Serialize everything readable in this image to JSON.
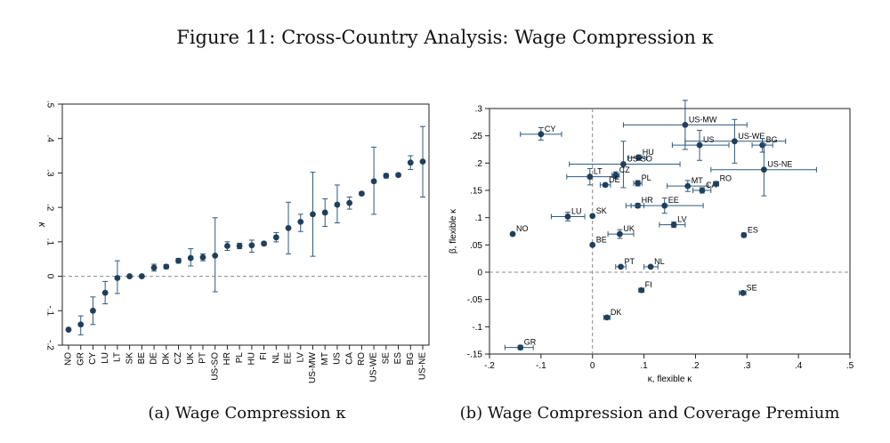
{
  "figure_title": "Figure 11: Cross-Country Analysis: Wage Compression κ",
  "captions": {
    "a": "(a) Wage Compression κ",
    "b": "(b) Wage Compression and Coverage Premium"
  },
  "colors": {
    "marker": "#1f3f5b",
    "ci": "#2e5a7e",
    "zero_line": "#888888",
    "frame": "#222222"
  },
  "chart_data": [
    {
      "type": "scatter",
      "subtype": "errorbar",
      "title": "",
      "ylabel": "κ",
      "xlabel": "",
      "ylim": [
        -0.2,
        0.5
      ],
      "yticks": [
        -0.2,
        -0.1,
        0,
        0.1,
        0.2,
        0.3,
        0.4,
        0.5
      ],
      "ytick_labels": [
        "-.2",
        "-.1",
        "0",
        ".1",
        ".2",
        ".3",
        ".4",
        ".5"
      ],
      "reference_line_y": 0,
      "categories": [
        "NO",
        "GR",
        "CY",
        "LU",
        "LT",
        "SK",
        "BE",
        "DE",
        "DK",
        "CZ",
        "UK",
        "PT",
        "US-SO",
        "HR",
        "PL",
        "HU",
        "FI",
        "NL",
        "EE",
        "LV",
        "US-MW",
        "MT",
        "US",
        "CA",
        "RO",
        "US-WE",
        "SE",
        "ES",
        "BG",
        "US-NE"
      ],
      "values": [
        -0.155,
        -0.14,
        -0.1,
        -0.048,
        -0.005,
        0.0,
        0.0,
        0.025,
        0.028,
        0.045,
        0.053,
        0.055,
        0.06,
        0.088,
        0.088,
        0.09,
        0.095,
        0.113,
        0.14,
        0.158,
        0.18,
        0.185,
        0.208,
        0.213,
        0.24,
        0.276,
        0.292,
        0.294,
        0.33,
        0.333
      ],
      "ci_low": [
        -0.155,
        -0.17,
        -0.14,
        -0.08,
        -0.05,
        0.0,
        0.0,
        0.015,
        0.022,
        0.038,
        0.03,
        0.045,
        -0.045,
        0.075,
        0.08,
        0.07,
        0.09,
        0.1,
        0.065,
        0.13,
        0.058,
        0.145,
        0.155,
        0.195,
        0.235,
        0.18,
        0.285,
        0.29,
        0.31,
        0.23
      ],
      "ci_high": [
        -0.155,
        -0.115,
        -0.06,
        -0.015,
        0.045,
        0.0,
        0.0,
        0.035,
        0.034,
        0.052,
        0.08,
        0.065,
        0.17,
        0.1,
        0.096,
        0.105,
        0.1,
        0.127,
        0.215,
        0.18,
        0.302,
        0.225,
        0.265,
        0.23,
        0.245,
        0.375,
        0.298,
        0.298,
        0.35,
        0.435
      ]
    },
    {
      "type": "scatter",
      "subtype": "errorbar-horizontal",
      "title": "",
      "xlabel": "κ, flexible κ",
      "ylabel": "β, flexible κ",
      "xlim": [
        -0.2,
        0.5
      ],
      "ylim": [
        -0.15,
        0.3
      ],
      "xticks": [
        -0.2,
        -0.1,
        0,
        0.1,
        0.2,
        0.3,
        0.4,
        0.5
      ],
      "xtick_labels": [
        "-.2",
        "-.1",
        "0",
        ".1",
        ".2",
        ".3",
        ".4",
        ".5"
      ],
      "yticks": [
        -0.15,
        -0.1,
        -0.05,
        0,
        0.05,
        0.1,
        0.15,
        0.2,
        0.25,
        0.3
      ],
      "ytick_labels": [
        "-.15",
        "-.1",
        "-.05",
        "0",
        ".05",
        ".1",
        ".15",
        ".2",
        ".25",
        ".3"
      ],
      "reference_lines": {
        "x": 0,
        "y": 0
      },
      "points": [
        {
          "label": "US-MW",
          "x": 0.18,
          "y": 0.27,
          "xlo": 0.06,
          "xhi": 0.3,
          "ylo": 0.225,
          "yhi": 0.315
        },
        {
          "label": "US",
          "x": 0.208,
          "y": 0.233,
          "xlo": 0.155,
          "xhi": 0.265,
          "ylo": 0.205,
          "yhi": 0.26
        },
        {
          "label": "US-WE",
          "x": 0.276,
          "y": 0.24,
          "xlo": 0.18,
          "xhi": 0.375,
          "ylo": 0.2,
          "yhi": 0.28
        },
        {
          "label": "BG",
          "x": 0.33,
          "y": 0.233,
          "xlo": 0.31,
          "xhi": 0.35,
          "ylo": 0.22,
          "yhi": 0.245
        },
        {
          "label": "US-NE",
          "x": 0.333,
          "y": 0.188,
          "xlo": 0.23,
          "xhi": 0.435,
          "ylo": 0.14,
          "yhi": 0.235
        },
        {
          "label": "CY",
          "x": -0.1,
          "y": 0.253,
          "xlo": -0.14,
          "xhi": -0.06,
          "ylo": 0.242,
          "yhi": 0.265
        },
        {
          "label": "HU",
          "x": 0.09,
          "y": 0.21,
          "xlo": 0.07,
          "xhi": 0.105,
          "ylo": 0.205,
          "yhi": 0.215
        },
        {
          "label": "US-SO",
          "x": 0.06,
          "y": 0.198,
          "xlo": -0.045,
          "xhi": 0.17,
          "ylo": 0.155,
          "yhi": 0.24
        },
        {
          "label": "LT",
          "x": -0.005,
          "y": 0.175,
          "xlo": -0.05,
          "xhi": 0.045,
          "ylo": 0.16,
          "yhi": 0.19
        },
        {
          "label": "CZ",
          "x": 0.045,
          "y": 0.178,
          "xlo": 0.038,
          "xhi": 0.052,
          "ylo": 0.172,
          "yhi": 0.184
        },
        {
          "label": "DE",
          "x": 0.025,
          "y": 0.16,
          "xlo": 0.015,
          "xhi": 0.035,
          "ylo": 0.157,
          "yhi": 0.163
        },
        {
          "label": "PL",
          "x": 0.088,
          "y": 0.163,
          "xlo": 0.08,
          "xhi": 0.096,
          "ylo": 0.158,
          "yhi": 0.168
        },
        {
          "label": "MT",
          "x": 0.185,
          "y": 0.158,
          "xlo": 0.145,
          "xhi": 0.225,
          "ylo": 0.148,
          "yhi": 0.168
        },
        {
          "label": "CA",
          "x": 0.213,
          "y": 0.15,
          "xlo": 0.195,
          "xhi": 0.23,
          "ylo": 0.145,
          "yhi": 0.155
        },
        {
          "label": "RO",
          "x": 0.24,
          "y": 0.162,
          "xlo": 0.235,
          "xhi": 0.245,
          "ylo": 0.158,
          "yhi": 0.166
        },
        {
          "label": "HR",
          "x": 0.088,
          "y": 0.122,
          "xlo": 0.075,
          "xhi": 0.1,
          "ylo": 0.118,
          "yhi": 0.126
        },
        {
          "label": "EE",
          "x": 0.14,
          "y": 0.122,
          "xlo": 0.065,
          "xhi": 0.215,
          "ylo": 0.108,
          "yhi": 0.136
        },
        {
          "label": "LU",
          "x": -0.048,
          "y": 0.102,
          "xlo": -0.08,
          "xhi": -0.015,
          "ylo": 0.094,
          "yhi": 0.11
        },
        {
          "label": "SK",
          "x": 0.0,
          "y": 0.103,
          "xlo": 0.0,
          "xhi": 0.0,
          "ylo": 0.103,
          "yhi": 0.103
        },
        {
          "label": "LV",
          "x": 0.158,
          "y": 0.087,
          "xlo": 0.13,
          "xhi": 0.18,
          "ylo": 0.082,
          "yhi": 0.092
        },
        {
          "label": "UK",
          "x": 0.053,
          "y": 0.07,
          "xlo": 0.03,
          "xhi": 0.08,
          "ylo": 0.062,
          "yhi": 0.078
        },
        {
          "label": "NO",
          "x": -0.155,
          "y": 0.07,
          "xlo": -0.155,
          "xhi": -0.155,
          "ylo": 0.07,
          "yhi": 0.07
        },
        {
          "label": "BE",
          "x": 0.0,
          "y": 0.05,
          "xlo": 0.0,
          "xhi": 0.0,
          "ylo": 0.05,
          "yhi": 0.05
        },
        {
          "label": "ES",
          "x": 0.294,
          "y": 0.068,
          "xlo": 0.29,
          "xhi": 0.298,
          "ylo": 0.066,
          "yhi": 0.07
        },
        {
          "label": "PT",
          "x": 0.055,
          "y": 0.01,
          "xlo": 0.045,
          "xhi": 0.065,
          "ylo": 0.008,
          "yhi": 0.012
        },
        {
          "label": "NL",
          "x": 0.113,
          "y": 0.01,
          "xlo": 0.1,
          "xhi": 0.127,
          "ylo": 0.008,
          "yhi": 0.012
        },
        {
          "label": "FI",
          "x": 0.095,
          "y": -0.033,
          "xlo": 0.09,
          "xhi": 0.1,
          "ylo": -0.035,
          "yhi": -0.031
        },
        {
          "label": "SE",
          "x": 0.292,
          "y": -0.038,
          "xlo": 0.285,
          "xhi": 0.298,
          "ylo": -0.04,
          "yhi": -0.036
        },
        {
          "label": "DK",
          "x": 0.028,
          "y": -0.083,
          "xlo": 0.022,
          "xhi": 0.034,
          "ylo": -0.085,
          "yhi": -0.081
        },
        {
          "label": "GR",
          "x": -0.14,
          "y": -0.138,
          "xlo": -0.17,
          "xhi": -0.115,
          "ylo": -0.142,
          "yhi": -0.134
        }
      ]
    }
  ]
}
